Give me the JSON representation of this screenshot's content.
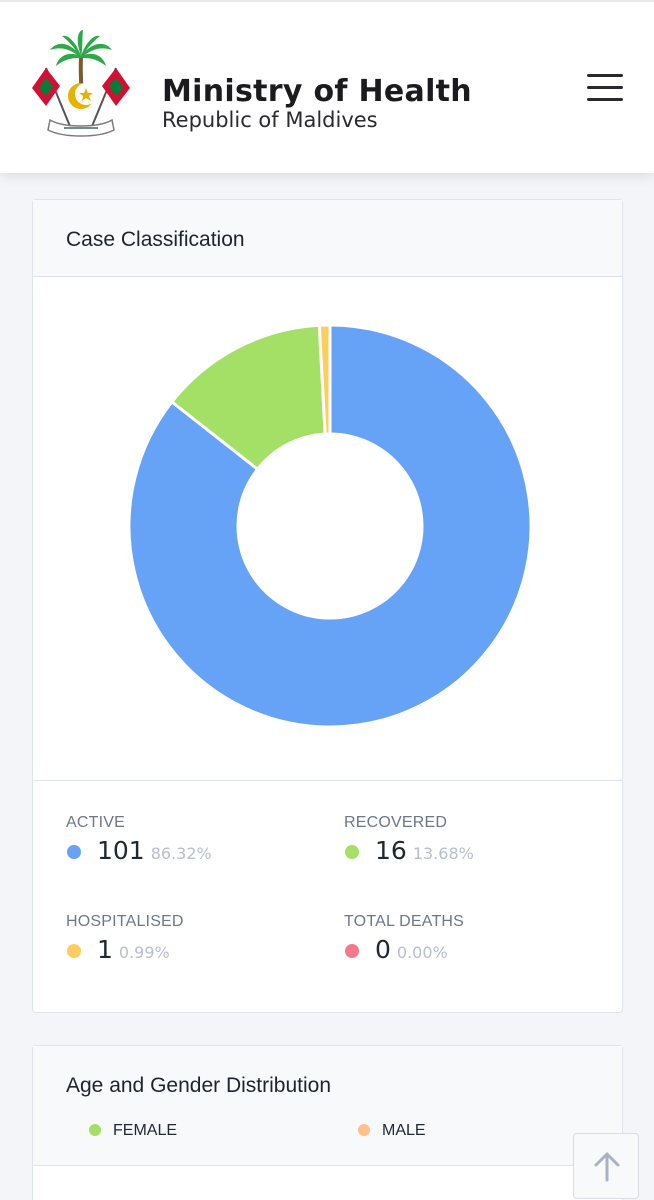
{
  "header": {
    "title": "Ministry of Health",
    "subtitle": "Republic of Maldives",
    "logo_icon": "maldives-emblem-icon",
    "menu_icon": "hamburger-menu-icon"
  },
  "case_card": {
    "title": "Case Classification",
    "stats": [
      {
        "label": "ACTIVE",
        "count": "101",
        "percent": "86.32%",
        "color": "#66a3f6"
      },
      {
        "label": "RECOVERED",
        "count": "16",
        "percent": "13.68%",
        "color": "#a3e065"
      },
      {
        "label": "HOSPITALISED",
        "count": "1",
        "percent": "0.99%",
        "color": "#ffcd5e"
      },
      {
        "label": "TOTAL DEATHS",
        "count": "0",
        "percent": "0.00%",
        "color": "#f5788a"
      }
    ]
  },
  "chart_data": {
    "type": "pie",
    "style": "donut",
    "categories": [
      "Active",
      "Recovered",
      "Hospitalised",
      "Total Deaths"
    ],
    "values": [
      101,
      16,
      1,
      0
    ],
    "colors": [
      "#66a3f6",
      "#a3e065",
      "#ffcd5e",
      "#f5788a"
    ]
  },
  "age_card": {
    "title": "Age and Gender Distribution",
    "legend": [
      {
        "label": "FEMALE",
        "color": "#a3e065"
      },
      {
        "label": "MALE",
        "color": "#ffc08a"
      }
    ]
  },
  "scroll_top_icon": "arrow-up-icon"
}
